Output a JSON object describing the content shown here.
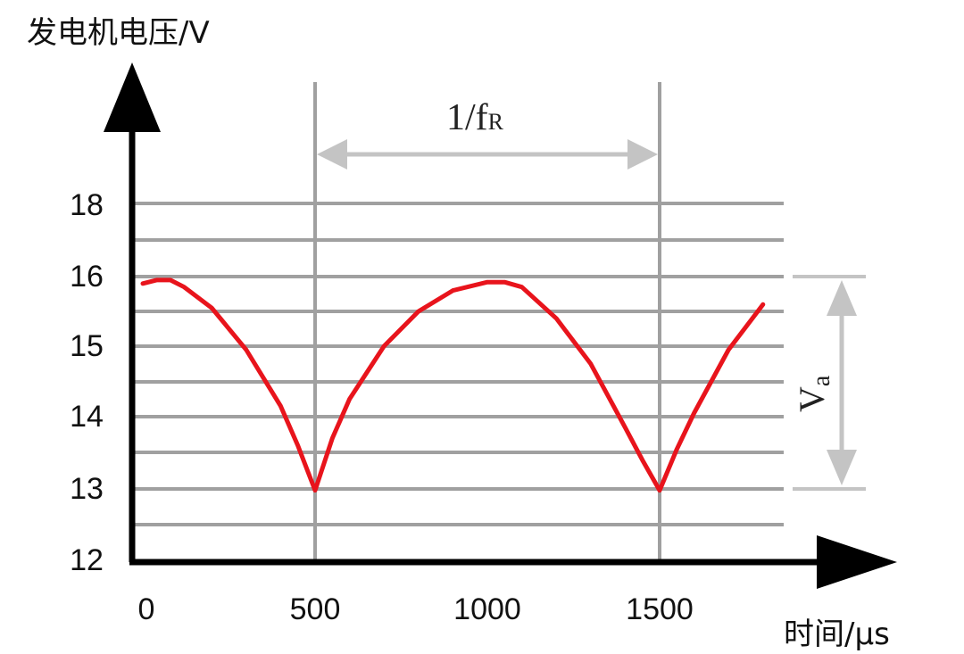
{
  "chart_data": {
    "type": "line",
    "ylabel": "发电机电压/V",
    "xlabel": "时间/μs",
    "x_ticks": [
      {
        "value": 0,
        "label": "0"
      },
      {
        "value": 500,
        "label": "500"
      },
      {
        "value": 1000,
        "label": "1000"
      },
      {
        "value": 1500,
        "label": "1500"
      }
    ],
    "y_ticks": [
      {
        "value": 12,
        "label": "12"
      },
      {
        "value": 13,
        "label": "13"
      },
      {
        "value": 14,
        "label": "14"
      },
      {
        "value": 15,
        "label": "15"
      },
      {
        "value": 16,
        "label": "16"
      },
      {
        "value": 18,
        "label": "18"
      }
    ],
    "xlim": [
      0,
      1900
    ],
    "grid": true,
    "series": [
      {
        "color": "#e8141c",
        "x": [
          0,
          40,
          80,
          120,
          200,
          300,
          400,
          450,
          500,
          550,
          600,
          700,
          800,
          900,
          1000,
          1050,
          1100,
          1200,
          1300,
          1400,
          1450,
          1500,
          1550,
          1600,
          1700,
          1800
        ],
        "y": [
          15.9,
          15.95,
          15.95,
          15.85,
          15.55,
          14.95,
          14.15,
          13.6,
          12.98,
          13.7,
          14.25,
          15.0,
          15.5,
          15.8,
          15.92,
          15.92,
          15.85,
          15.4,
          14.75,
          13.85,
          13.4,
          12.98,
          13.55,
          14.05,
          14.95,
          15.6
        ]
      }
    ],
    "annotations": {
      "period": {
        "label_main": "1/f",
        "label_sub": "R",
        "x_from": 500,
        "x_to": 1500
      },
      "amplitude": {
        "label_main": "V",
        "label_sub": "a",
        "y_from": 13,
        "y_to": 16
      }
    },
    "colors": {
      "axis": "#000000",
      "grid": "#a0a0a0",
      "annotation": "#c4c4c4",
      "curve": "#e8141c"
    }
  }
}
